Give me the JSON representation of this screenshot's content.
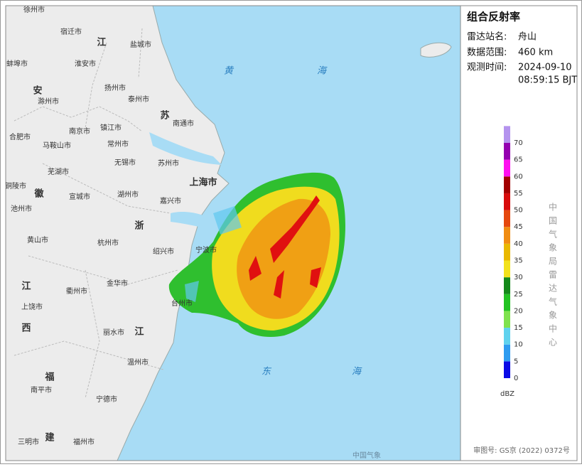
{
  "panel": {
    "title": "组合反射率",
    "station_label": "雷达站名:",
    "station": "舟山",
    "range_label": "数据范围:",
    "range": "460 km",
    "time_label": "观测时间:",
    "date": "2024-09-10",
    "time": "08:59:15 BJT"
  },
  "legend": {
    "ticks": [
      0,
      5,
      10,
      15,
      20,
      25,
      30,
      35,
      40,
      45,
      50,
      55,
      60,
      65,
      70
    ],
    "colors": [
      "#0a0ae6",
      "#2e9cf0",
      "#5fd2ee",
      "#7fe24e",
      "#22c322",
      "#14891a",
      "#f2e21c",
      "#e9b800",
      "#f08c12",
      "#e5480e",
      "#d80c0c",
      "#a20000",
      "#ff10f0",
      "#9400b0",
      "#b493ee"
    ],
    "unit": "dBZ",
    "credit": "中国气象局雷达气象中心"
  },
  "footer": {
    "approval": "审图号: GS京 (2022) 0372号"
  },
  "map": {
    "labels": [
      "徐州市",
      "宿迁市",
      "江",
      "盐城市",
      "蚌埠市",
      "淮安市",
      "扬州市",
      "安",
      "滁州市",
      "泰州市",
      "苏",
      "南通市",
      "合肥市",
      "南京市",
      "镇江市",
      "马鞍山市",
      "常州市",
      "无锡市",
      "苏州市",
      "芜湖市",
      "上海市",
      "铜陵市",
      "徽",
      "宣城市",
      "湖州市",
      "嘉兴市",
      "池州市",
      "浙",
      "黄山市",
      "杭州市",
      "绍兴市",
      "宁波市",
      "江",
      "衢州市",
      "金华市",
      "上饶市",
      "台州市",
      "西",
      "丽水市",
      "江",
      "温州市",
      "福",
      "南平市",
      "宁德市",
      "建",
      "三明市",
      "福州市"
    ],
    "sea": [
      "黄",
      "海",
      "东",
      "海"
    ],
    "watermark": "中国气象"
  }
}
